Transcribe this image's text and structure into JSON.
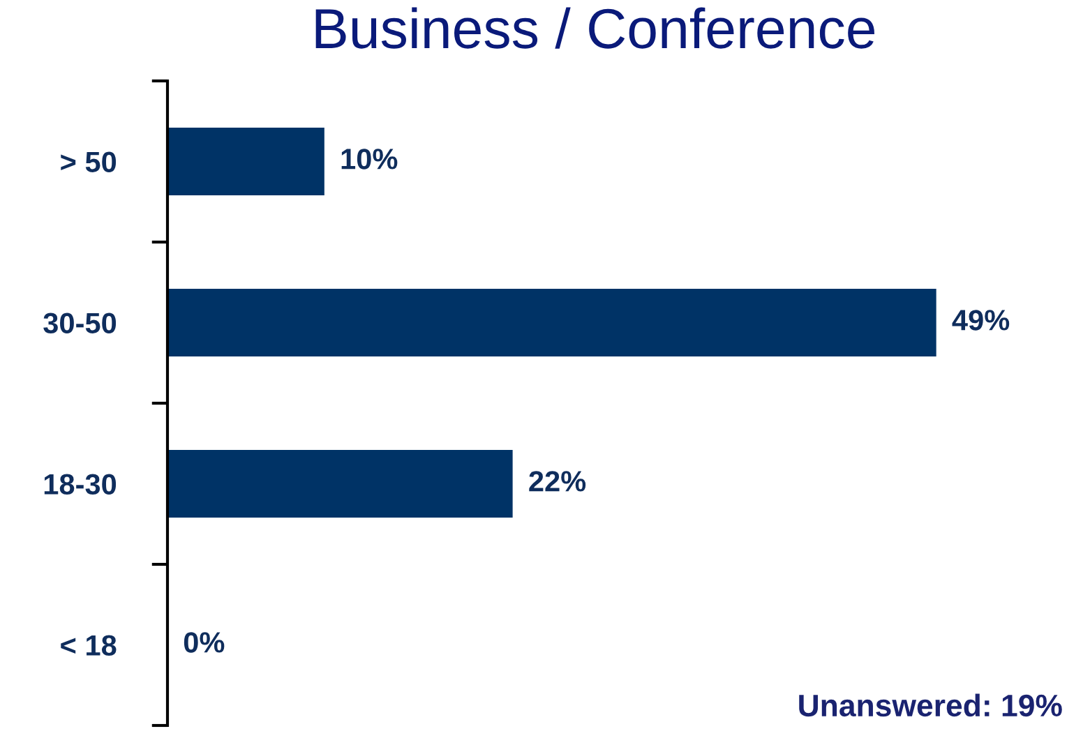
{
  "chart_data": {
    "type": "bar",
    "orientation": "horizontal",
    "title": "Business / Conference",
    "categories": [
      "> 50",
      "30-50",
      "18-30",
      "< 18"
    ],
    "values": [
      10,
      49,
      22,
      0
    ],
    "value_labels": [
      "10%",
      "49%",
      "22%",
      "0%"
    ],
    "color": "#003366",
    "annotations": [
      "Unanswered: 19%"
    ]
  }
}
